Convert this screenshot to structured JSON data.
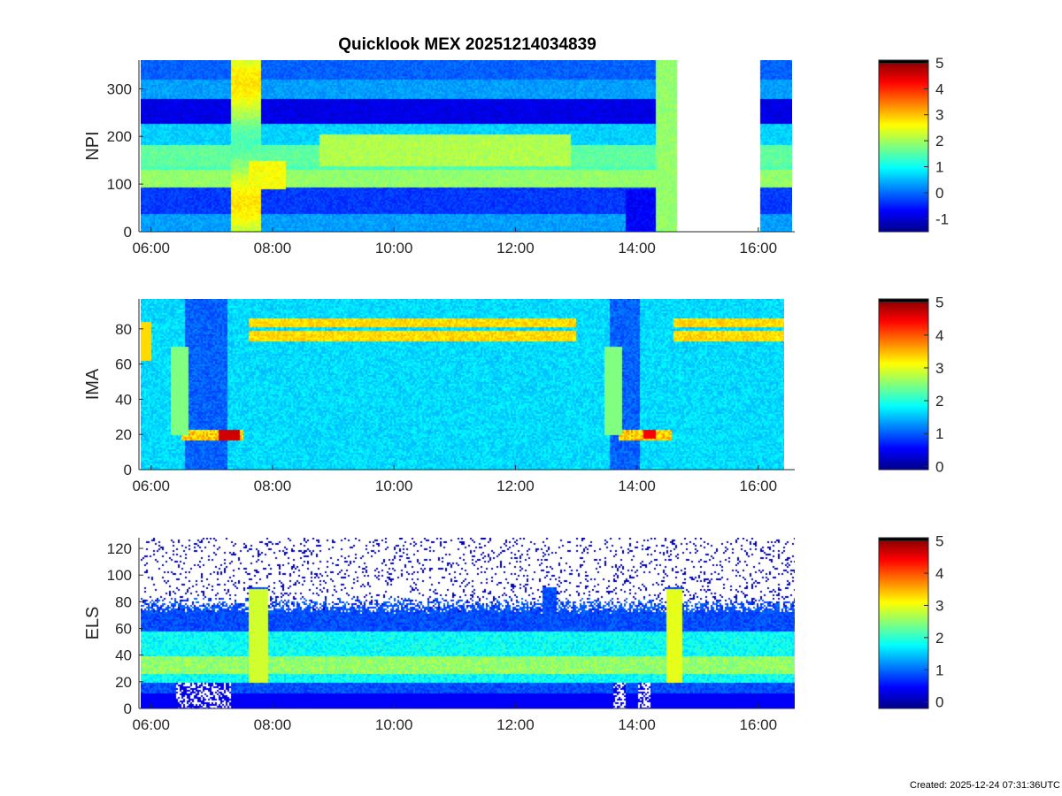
{
  "figure": {
    "title": "Quicklook MEX 20251214034839",
    "created": "Created: 2025-12-24 07:31:36UTC"
  },
  "chart_data": [
    {
      "type": "heatmap",
      "ylabel": "NPI",
      "xticks": [
        "06:00",
        "08:00",
        "10:00",
        "12:00",
        "14:00",
        "16:00"
      ],
      "xlim_hours": [
        5.8,
        16.6
      ],
      "data_range_hours": [
        5.83,
        16.55
      ],
      "data_gap_hours": [
        14.65,
        16.02
      ],
      "ylim": [
        0,
        360
      ],
      "yticks": [
        0,
        100,
        200,
        300
      ],
      "colorbar": {
        "ticks": [
          -1,
          0,
          1,
          2,
          3,
          4,
          5
        ],
        "range": [
          -1.5,
          5.1
        ]
      },
      "features": [
        {
          "label": "bright bursts",
          "at_hours": [
            7.5,
            14.5
          ]
        },
        {
          "label": "steady band",
          "range_hours": [
            8.8,
            12.9
          ]
        }
      ]
    },
    {
      "type": "heatmap",
      "ylabel": "IMA",
      "xticks": [
        "06:00",
        "08:00",
        "10:00",
        "12:00",
        "14:00",
        "16:00"
      ],
      "xlim_hours": [
        5.8,
        16.6
      ],
      "data_range_hours": [
        5.83,
        16.43
      ],
      "ylim": [
        0,
        97
      ],
      "yticks": [
        0,
        20,
        40,
        60,
        80
      ],
      "colorbar": {
        "ticks": [
          0,
          1,
          2,
          3,
          4,
          5
        ],
        "range": [
          -0.1,
          5.1
        ]
      },
      "features": [
        {
          "label": "low-energy dip",
          "range_hours": [
            6.5,
            7.5
          ]
        },
        {
          "label": "low-energy dip",
          "range_hours": [
            13.6,
            14.6
          ]
        }
      ]
    },
    {
      "type": "heatmap",
      "ylabel": "ELS",
      "xticks": [
        "06:00",
        "08:00",
        "10:00",
        "12:00",
        "14:00",
        "16:00"
      ],
      "xlim_hours": [
        5.8,
        16.6
      ],
      "data_range_hours": [
        5.83,
        16.6
      ],
      "ylim": [
        0,
        128
      ],
      "yticks": [
        0,
        20,
        40,
        60,
        80,
        100,
        120
      ],
      "colorbar": {
        "ticks": [
          0,
          1,
          2,
          3,
          4,
          5
        ],
        "range": [
          -0.2,
          5.1
        ]
      },
      "features": [
        {
          "label": "spike",
          "at_hours": [
            7.75,
            12.6,
            14.6
          ]
        }
      ]
    }
  ]
}
